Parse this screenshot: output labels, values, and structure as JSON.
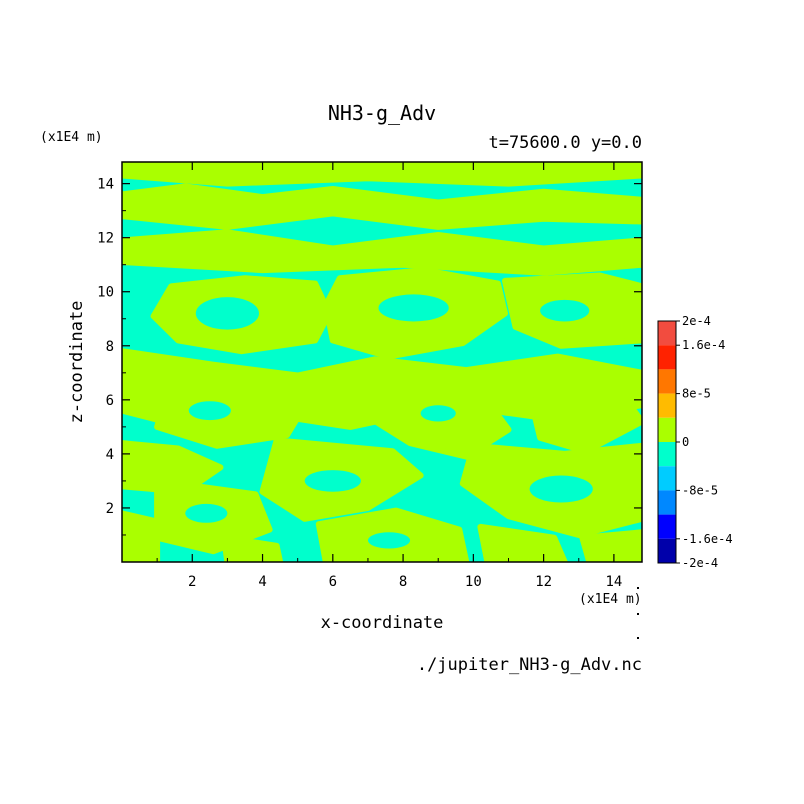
{
  "chart_data": {
    "type": "heatmap",
    "title": "NH3-g_Adv",
    "subtitle": "t=75600.0 y=0.0",
    "xlabel": "x-coordinate",
    "ylabel": "z-coordinate",
    "x_unit": "(x1E4 m)",
    "z_unit": "(x1E4 m)",
    "xlim": [
      0,
      14.8
    ],
    "ylim": [
      0,
      14.8
    ],
    "x_ticks": [
      "2",
      "4",
      "6",
      "8",
      "10",
      "12",
      "14"
    ],
    "y_ticks": [
      "2",
      "4",
      "6",
      "8",
      "10",
      "12",
      "14"
    ],
    "colorbar": {
      "labels": [
        "2e-4",
        "1.6e-4",
        "8e-5",
        "0",
        "-8e-5",
        "-1.6e-4",
        "-2e-4"
      ],
      "bins": [
        {
          "range": [
            0.00016,
            0.0002
          ],
          "color": "#f24c3f"
        },
        {
          "range": [
            0.00012,
            0.00016
          ],
          "color": "#ff2200"
        },
        {
          "range": [
            8e-05,
            0.00012
          ],
          "color": "#ff7700"
        },
        {
          "range": [
            4e-05,
            8e-05
          ],
          "color": "#ffbb00"
        },
        {
          "range": [
            0,
            4e-05
          ],
          "color": "#aaff00"
        },
        {
          "range": [
            -4e-05,
            0
          ],
          "color": "#00ffcc"
        },
        {
          "range": [
            -8e-05,
            -4e-05
          ],
          "color": "#00ccff"
        },
        {
          "range": [
            -0.00012,
            -8e-05
          ],
          "color": "#0088ff"
        },
        {
          "range": [
            -0.00016,
            -0.00012
          ],
          "color": "#0000ff"
        },
        {
          "range": [
            -0.0002,
            -0.00016
          ],
          "color": "#0000aa"
        }
      ]
    },
    "dominant_values": [
      "0 to 4e-5",
      "-4e-5 to 0"
    ],
    "footer": "./jupiter_NH3-g_Adv.nc"
  }
}
